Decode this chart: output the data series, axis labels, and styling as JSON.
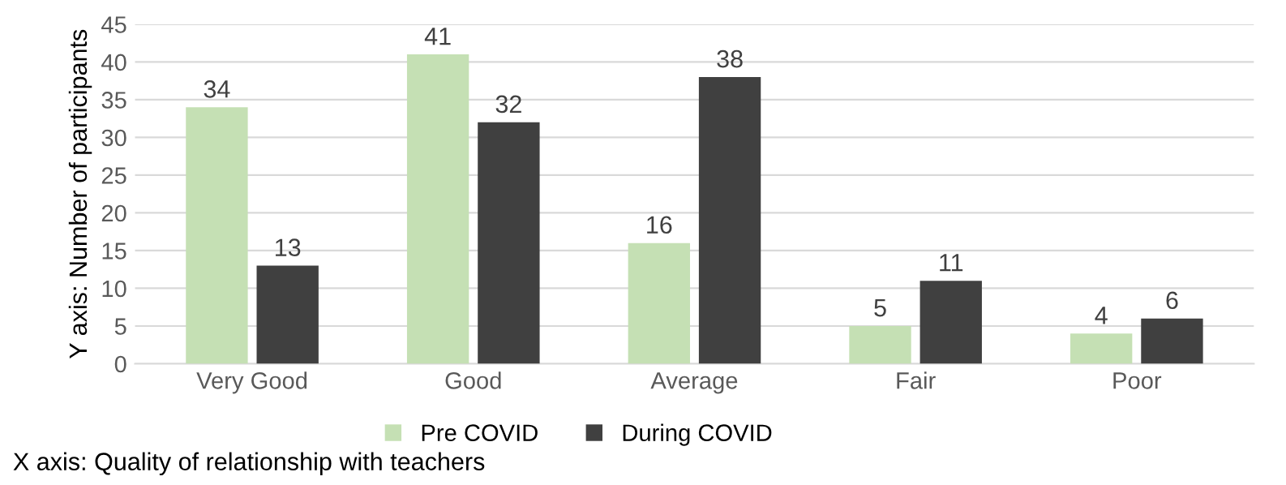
{
  "chart_data": {
    "type": "bar",
    "ylabel": "Y axis: Number of participants",
    "categories": [
      "Very Good",
      "Good",
      "Average",
      "Fair",
      "Poor"
    ],
    "series": [
      {
        "name": "Pre COVID",
        "color": "#c5e0b4",
        "values": [
          34,
          41,
          16,
          5,
          4
        ]
      },
      {
        "name": "During COVID",
        "color": "#404040",
        "values": [
          13,
          32,
          38,
          11,
          6
        ]
      }
    ],
    "ylim": [
      0,
      45
    ],
    "yticks": [
      0,
      5,
      10,
      15,
      20,
      25,
      30,
      35,
      40,
      45
    ],
    "grid": "y",
    "data_labels": true,
    "legend": "bottom",
    "annotations": [
      "X axis: Quality of relationship with teachers"
    ]
  }
}
